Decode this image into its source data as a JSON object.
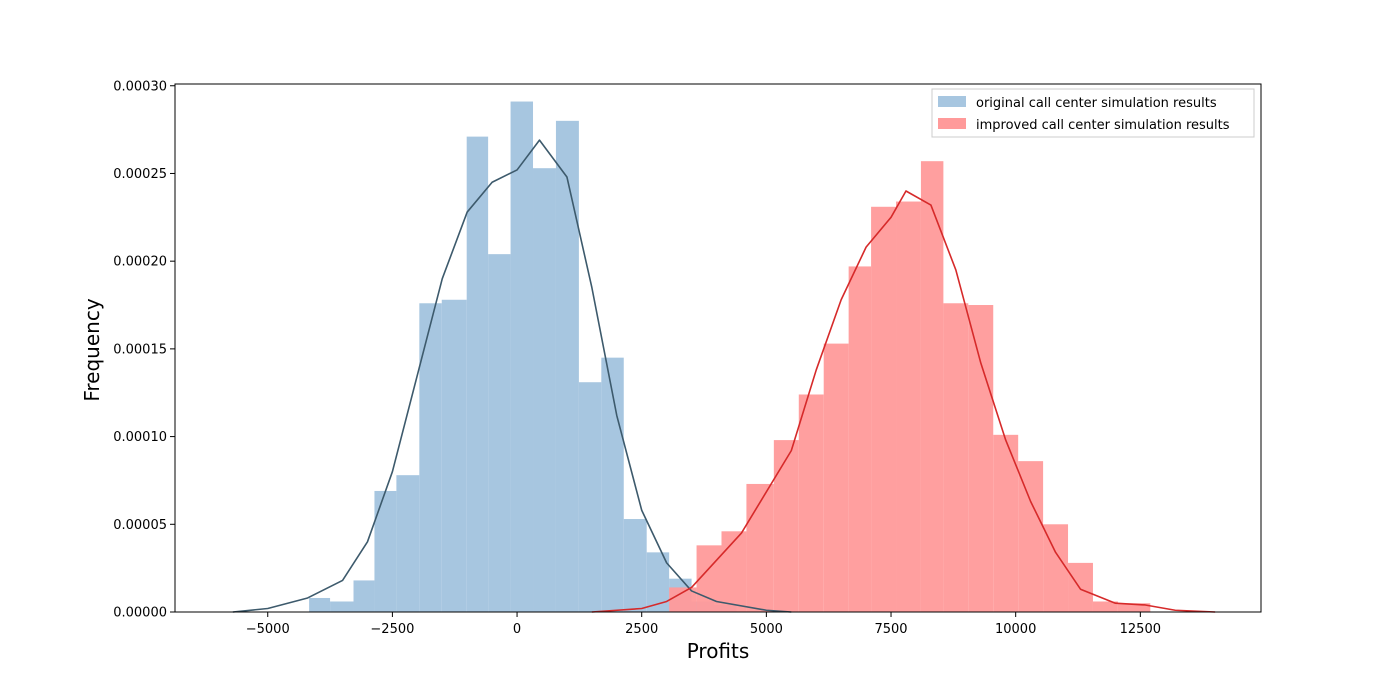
{
  "chart_data": {
    "type": "bar",
    "xlabel": "Profits",
    "ylabel": "Frequency",
    "xlim": [
      -6860,
      14920
    ],
    "ylim": [
      0,
      0.000301
    ],
    "x_ticks": [
      -5000,
      -2500,
      0,
      2500,
      5000,
      7500,
      10000,
      12500
    ],
    "x_tick_labels": [
      "−5000",
      "−2500",
      "0",
      "2500",
      "5000",
      "7500",
      "10000",
      "12500"
    ],
    "y_ticks": [
      0,
      5e-05,
      0.0001,
      0.00015,
      0.0002,
      0.00025,
      0.0003
    ],
    "y_tick_labels": [
      "0.00000",
      "0.00005",
      "0.00010",
      "0.00015",
      "0.00020",
      "0.00025",
      "0.00030"
    ],
    "grid": false,
    "legend_position": "top-right",
    "colors": {
      "original_bars": "#a7c6e0",
      "original_kde": "#3d5a6c",
      "improved_bars": "#ff9a9a",
      "improved_kde": "#d62a2a"
    },
    "series": [
      {
        "name": "original call center simulation results",
        "bins": [
          [
            -4170,
            -3750,
            8e-06
          ],
          [
            -3750,
            -3280,
            6e-06
          ],
          [
            -3280,
            -2860,
            1.8e-05
          ],
          [
            -2860,
            -2420,
            6.9e-05
          ],
          [
            -2420,
            -1960,
            7.8e-05
          ],
          [
            -1960,
            -1510,
            0.000176
          ],
          [
            -1510,
            -1010,
            0.000178
          ],
          [
            -1010,
            -580,
            0.000271
          ],
          [
            -580,
            -130,
            0.000204
          ],
          [
            -130,
            320,
            0.000291
          ],
          [
            320,
            780,
            0.000253
          ],
          [
            780,
            1240,
            0.00028
          ],
          [
            1240,
            1690,
            0.000131
          ],
          [
            1690,
            2140,
            0.000145
          ],
          [
            2140,
            2600,
            5.3e-05
          ],
          [
            2600,
            3050,
            3.4e-05
          ],
          [
            3050,
            3500,
            1.9e-05
          ],
          [
            3500,
            3950,
            6e-06
          ],
          [
            3950,
            4400,
            4e-06
          ]
        ],
        "kde": [
          [
            -5700,
            0
          ],
          [
            -5000,
            2e-06
          ],
          [
            -4200,
            8e-06
          ],
          [
            -3500,
            1.8e-05
          ],
          [
            -3000,
            4e-05
          ],
          [
            -2500,
            8e-05
          ],
          [
            -2000,
            0.000135
          ],
          [
            -1500,
            0.00019
          ],
          [
            -1000,
            0.000228
          ],
          [
            -500,
            0.000245
          ],
          [
            0,
            0.000252
          ],
          [
            450,
            0.000269
          ],
          [
            1000,
            0.000248
          ],
          [
            1500,
            0.000185
          ],
          [
            2000,
            0.000112
          ],
          [
            2500,
            5.8e-05
          ],
          [
            3000,
            2.8e-05
          ],
          [
            3500,
            1.2e-05
          ],
          [
            4000,
            6e-06
          ],
          [
            5000,
            1e-06
          ],
          [
            5500,
            0
          ]
        ]
      },
      {
        "name": "improved call center simulation results",
        "bins": [
          [
            3050,
            3600,
            1.4e-05
          ],
          [
            3600,
            4100,
            3.8e-05
          ],
          [
            4100,
            4600,
            4.6e-05
          ],
          [
            4600,
            5150,
            7.3e-05
          ],
          [
            5150,
            5650,
            9.8e-05
          ],
          [
            5650,
            6150,
            0.000124
          ],
          [
            6150,
            6650,
            0.000153
          ],
          [
            6650,
            7100,
            0.000197
          ],
          [
            7100,
            7600,
            0.000231
          ],
          [
            7600,
            8100,
            0.000234
          ],
          [
            8100,
            8550,
            0.000257
          ],
          [
            8550,
            9050,
            0.000176
          ],
          [
            9050,
            9550,
            0.000175
          ],
          [
            9550,
            10050,
            0.000101
          ],
          [
            10050,
            10550,
            8.6e-05
          ],
          [
            10550,
            11050,
            5e-05
          ],
          [
            11050,
            11550,
            2.8e-05
          ],
          [
            11550,
            12050,
            6e-06
          ],
          [
            12050,
            12700,
            5e-06
          ]
        ],
        "kde": [
          [
            1500,
            0
          ],
          [
            2500,
            2e-06
          ],
          [
            3000,
            6e-06
          ],
          [
            3500,
            1.4e-05
          ],
          [
            4500,
            4.5e-05
          ],
          [
            5500,
            9.2e-05
          ],
          [
            6000,
            0.000138
          ],
          [
            6500,
            0.000178
          ],
          [
            7000,
            0.000208
          ],
          [
            7500,
            0.000225
          ],
          [
            7800,
            0.00024
          ],
          [
            8300,
            0.000232
          ],
          [
            8800,
            0.000195
          ],
          [
            9300,
            0.000142
          ],
          [
            9800,
            9.8e-05
          ],
          [
            10300,
            6.3e-05
          ],
          [
            10800,
            3.4e-05
          ],
          [
            11300,
            1.3e-05
          ],
          [
            12000,
            5e-06
          ],
          [
            12600,
            4e-06
          ],
          [
            13200,
            1e-06
          ],
          [
            14000,
            0
          ]
        ]
      }
    ]
  }
}
